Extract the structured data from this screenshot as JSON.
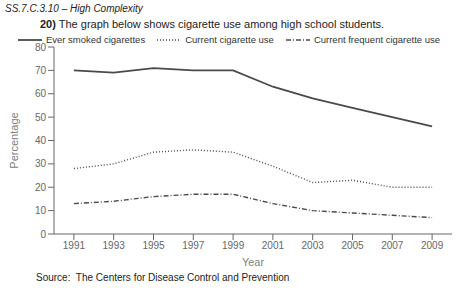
{
  "chart_data": {
    "type": "line",
    "title": "The graph below shows cigarette use among high school students.",
    "annotations": [
      "SS.7.C.3.10 – High Complexity",
      "20)",
      "Source:  The Centers for Disease Control and Prevention"
    ],
    "x_label": "Year",
    "y_label": "Percentage",
    "x": [
      1991,
      1993,
      1995,
      1997,
      1999,
      2001,
      2003,
      2005,
      2007,
      2009
    ],
    "series": [
      {
        "name": "Ever smoked cigarettes",
        "color": "#4a4a4a",
        "line_style": "solid",
        "values": [
          70,
          69,
          71,
          70,
          70,
          63,
          58,
          54,
          50,
          46
        ]
      },
      {
        "name": "Current cigarette use",
        "color": "#4a4a4a",
        "line_style": "dotted",
        "values": [
          28,
          30,
          35,
          36,
          35,
          29,
          22,
          23,
          20,
          20
        ]
      },
      {
        "name": "Current frequent cigarette use",
        "color": "#4a4a4a",
        "line_style": "dashdot",
        "values": [
          13,
          14,
          16,
          17,
          17,
          13,
          10,
          9,
          8,
          7
        ]
      }
    ],
    "xlim": [
      1990,
      2010
    ],
    "xticks": [
      1991,
      1993,
      1995,
      1997,
      1999,
      2001,
      2003,
      2005,
      2007,
      2009
    ],
    "ylim": [
      0,
      80
    ],
    "yticks": [
      0,
      10,
      20,
      30,
      40,
      50,
      60,
      70,
      80
    ],
    "grid": false,
    "legend": "top"
  }
}
